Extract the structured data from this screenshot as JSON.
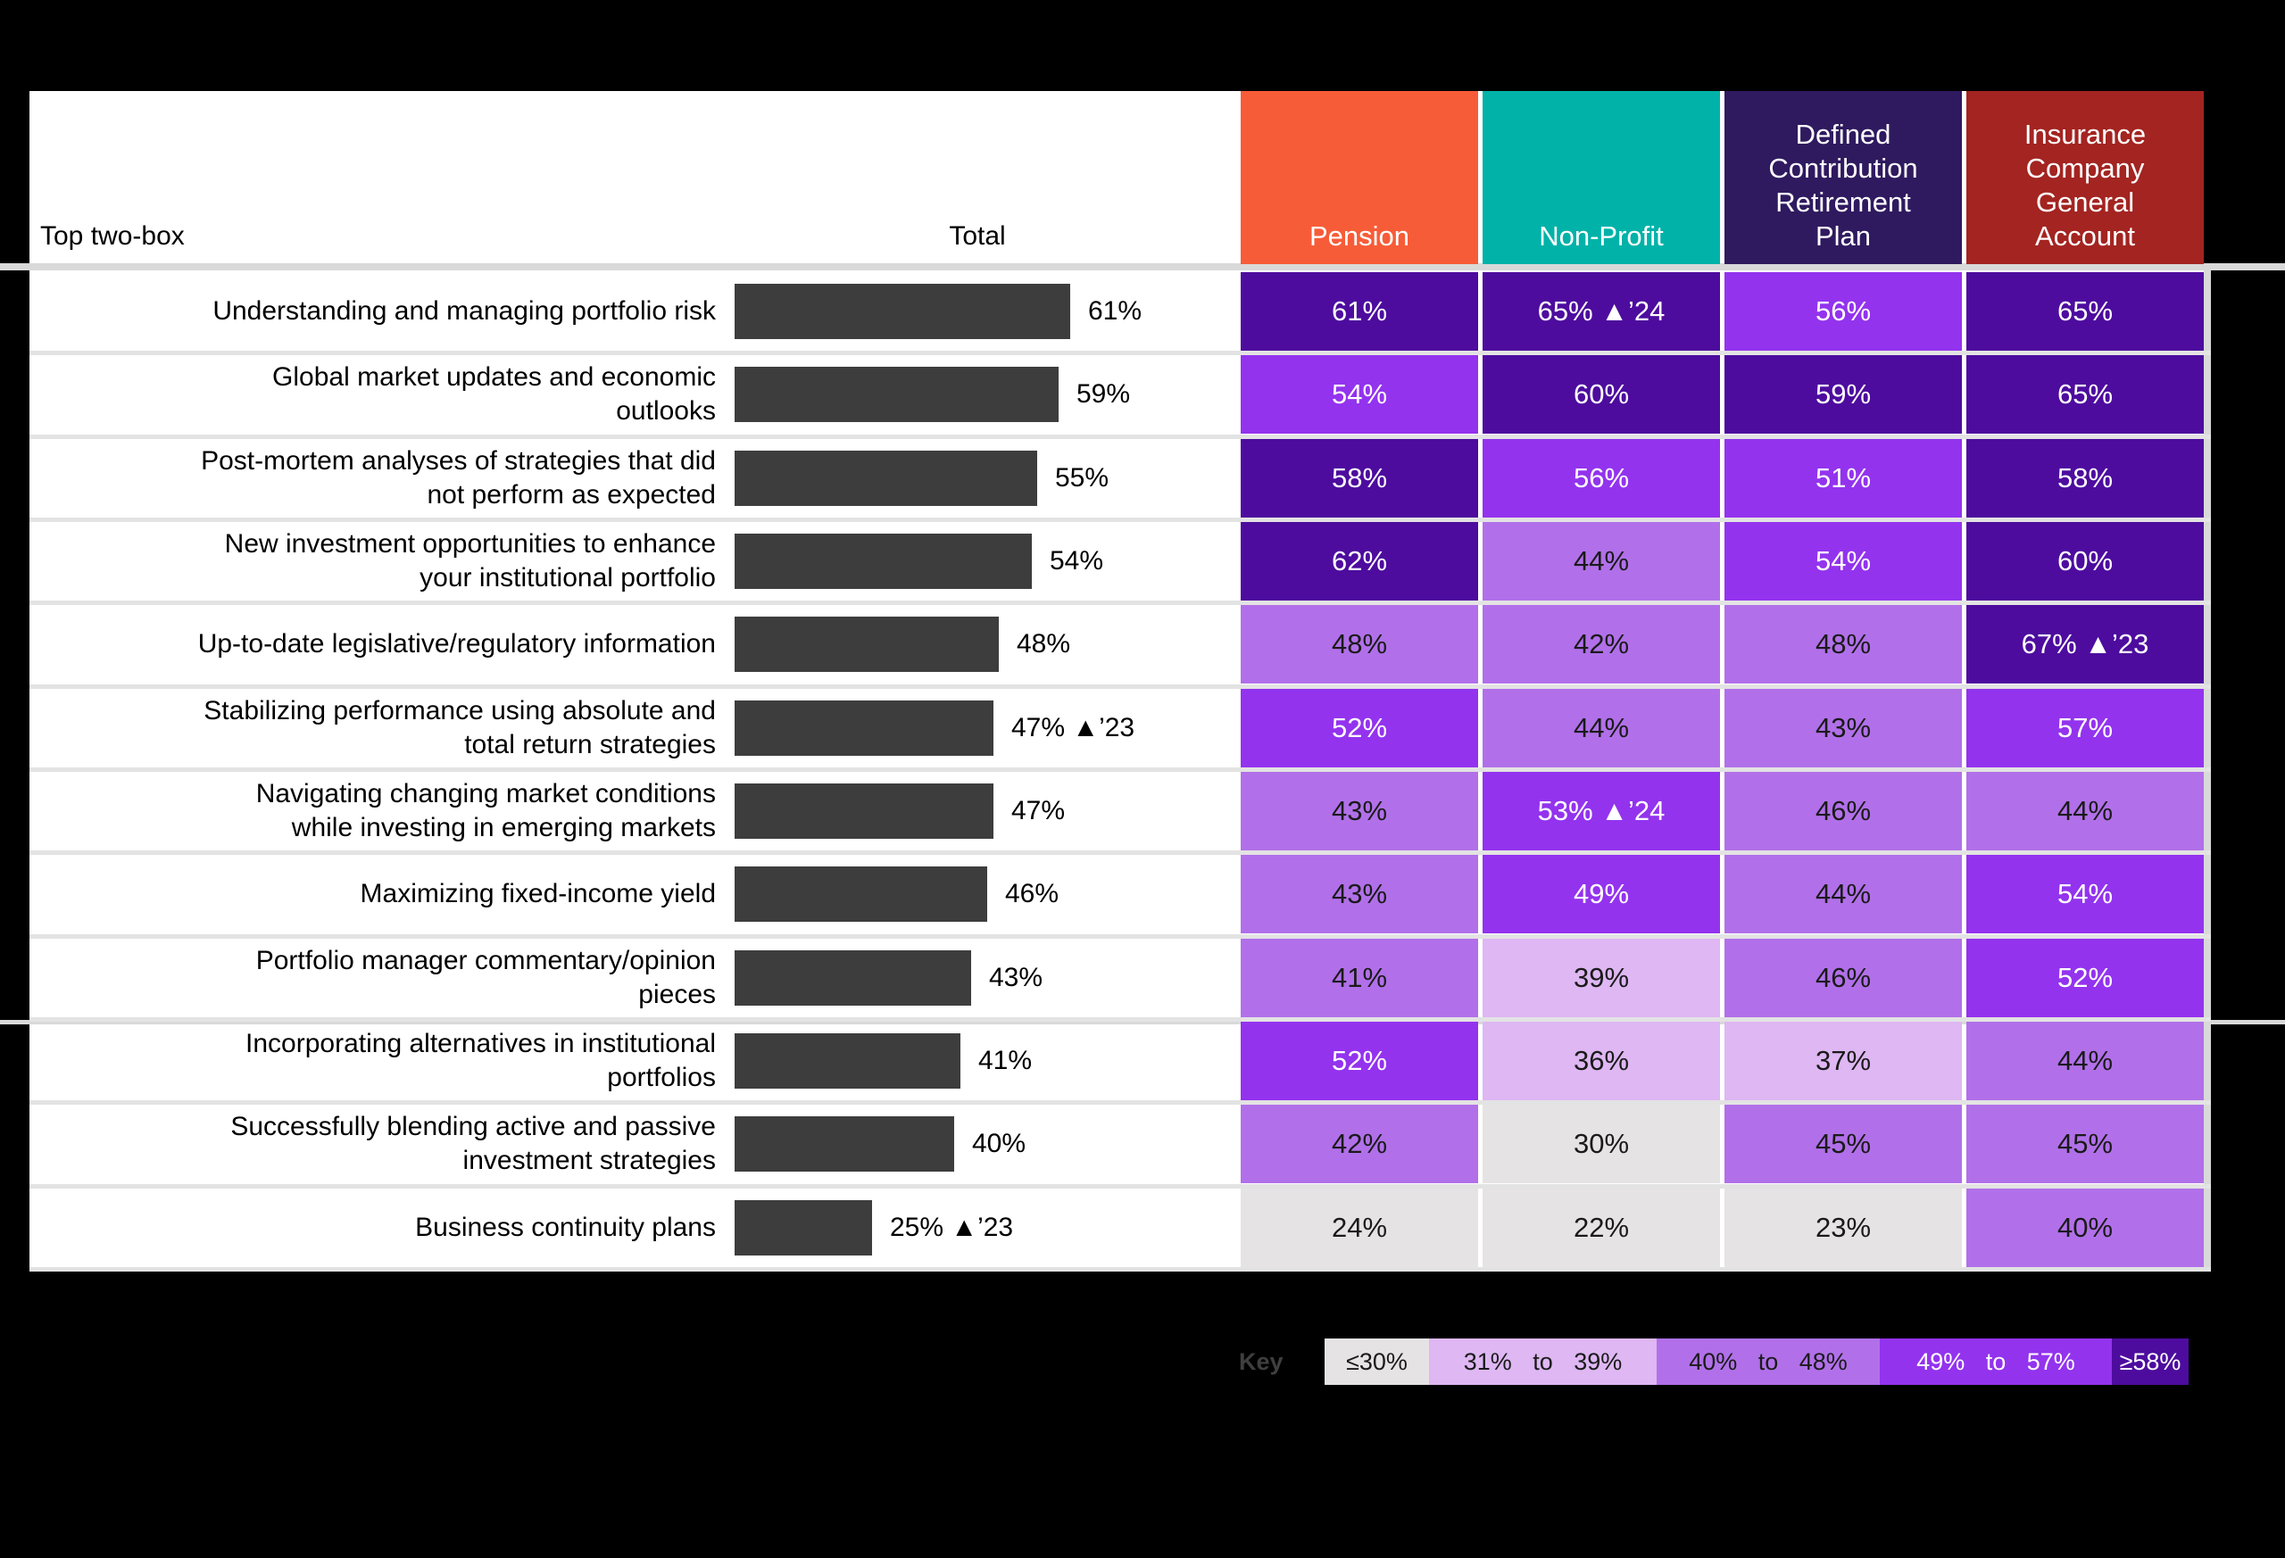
{
  "chart_data": {
    "type": "table",
    "row_header": "Top two-box",
    "total_header": "Total",
    "bar_color": "#3D3D3D",
    "columns": [
      {
        "label": "Pension",
        "header_color": "#F75C38"
      },
      {
        "label": "Non-Profit",
        "header_color": "#00B2A8"
      },
      {
        "label": "Defined\nContribution\nRetirement\nPlan",
        "header_color": "#2F1A5F"
      },
      {
        "label": "Insurance\nCompany\nGeneral\nAccount",
        "header_color": "#A32421"
      }
    ],
    "rows": [
      {
        "label": "Understanding and managing portfolio risk",
        "total": 61,
        "total_display": "61%",
        "cells": [
          {
            "value": 61,
            "display": "61%"
          },
          {
            "value": 65,
            "display": "65% ▲’24"
          },
          {
            "value": 56,
            "display": "56%"
          },
          {
            "value": 65,
            "display": "65%"
          }
        ]
      },
      {
        "label": "Global market updates and economic\noutlooks",
        "total": 59,
        "total_display": "59%",
        "cells": [
          {
            "value": 54,
            "display": "54%"
          },
          {
            "value": 60,
            "display": "60%"
          },
          {
            "value": 59,
            "display": "59%"
          },
          {
            "value": 65,
            "display": "65%"
          }
        ]
      },
      {
        "label": "Post-mortem analyses of strategies that did\nnot perform as expected",
        "total": 55,
        "total_display": "55%",
        "cells": [
          {
            "value": 58,
            "display": "58%"
          },
          {
            "value": 56,
            "display": "56%"
          },
          {
            "value": 51,
            "display": "51%"
          },
          {
            "value": 58,
            "display": "58%"
          }
        ]
      },
      {
        "label": "New investment opportunities to enhance\nyour institutional portfolio",
        "total": 54,
        "total_display": "54%",
        "cells": [
          {
            "value": 62,
            "display": "62%"
          },
          {
            "value": 44,
            "display": "44%"
          },
          {
            "value": 54,
            "display": "54%"
          },
          {
            "value": 60,
            "display": "60%"
          }
        ]
      },
      {
        "label": "Up-to-date legislative/regulatory information",
        "total": 48,
        "total_display": "48%",
        "cells": [
          {
            "value": 48,
            "display": "48%"
          },
          {
            "value": 42,
            "display": "42%"
          },
          {
            "value": 48,
            "display": "48%"
          },
          {
            "value": 67,
            "display": "67% ▲’23"
          }
        ]
      },
      {
        "label": "Stabilizing performance using absolute and\ntotal return strategies",
        "total": 47,
        "total_display": "47% ▲’23",
        "cells": [
          {
            "value": 52,
            "display": "52%"
          },
          {
            "value": 44,
            "display": "44%"
          },
          {
            "value": 43,
            "display": "43%"
          },
          {
            "value": 57,
            "display": "57%"
          }
        ]
      },
      {
        "label": "Navigating changing market conditions\nwhile investing in emerging markets",
        "total": 47,
        "total_display": "47%",
        "cells": [
          {
            "value": 43,
            "display": "43%"
          },
          {
            "value": 53,
            "display": "53% ▲’24"
          },
          {
            "value": 46,
            "display": "46%"
          },
          {
            "value": 44,
            "display": "44%"
          }
        ]
      },
      {
        "label": "Maximizing fixed-income yield",
        "total": 46,
        "total_display": "46%",
        "cells": [
          {
            "value": 43,
            "display": "43%"
          },
          {
            "value": 49,
            "display": "49%"
          },
          {
            "value": 44,
            "display": "44%"
          },
          {
            "value": 54,
            "display": "54%"
          }
        ]
      },
      {
        "label": "Portfolio manager commentary/opinion\npieces",
        "total": 43,
        "total_display": "43%",
        "cells": [
          {
            "value": 41,
            "display": "41%"
          },
          {
            "value": 39,
            "display": "39%"
          },
          {
            "value": 46,
            "display": "46%"
          },
          {
            "value": 52,
            "display": "52%"
          }
        ]
      },
      {
        "label": "Incorporating alternatives in institutional\nportfolios",
        "total": 41,
        "total_display": "41%",
        "cells": [
          {
            "value": 52,
            "display": "52%"
          },
          {
            "value": 36,
            "display": "36%"
          },
          {
            "value": 37,
            "display": "37%"
          },
          {
            "value": 44,
            "display": "44%"
          }
        ]
      },
      {
        "label": "Successfully blending active and passive\ninvestment strategies",
        "total": 40,
        "total_display": "40%",
        "cells": [
          {
            "value": 42,
            "display": "42%"
          },
          {
            "value": 30,
            "display": "30%"
          },
          {
            "value": 45,
            "display": "45%"
          },
          {
            "value": 45,
            "display": "45%"
          }
        ]
      },
      {
        "label": "Business continuity plans",
        "total": 25,
        "total_display": "25% ▲’23",
        "cells": [
          {
            "value": 24,
            "display": "24%"
          },
          {
            "value": 22,
            "display": "22%"
          },
          {
            "value": 23,
            "display": "23%"
          },
          {
            "value": 40,
            "display": "40%"
          }
        ]
      }
    ],
    "key": {
      "label": "Key",
      "buckets": [
        {
          "label": "≤30%",
          "min": null,
          "max": 30,
          "color": "#E5E3E4",
          "text_color": "#1A1A1A"
        },
        {
          "label": "31% to 39%",
          "min": 31,
          "max": 39,
          "color": "#DEB7F3",
          "text_color": "#1A1A1A"
        },
        {
          "label": "40% to 48%",
          "min": 40,
          "max": 48,
          "color": "#B170E9",
          "text_color": "#1A1A1A"
        },
        {
          "label": "49% to 57%",
          "min": 49,
          "max": 57,
          "color": "#9333EE",
          "text_color": "#FFFFFF"
        },
        {
          "label": "≥58%",
          "min": 58,
          "max": null,
          "color": "#4D0C9E",
          "text_color": "#FFFFFF"
        }
      ]
    }
  }
}
